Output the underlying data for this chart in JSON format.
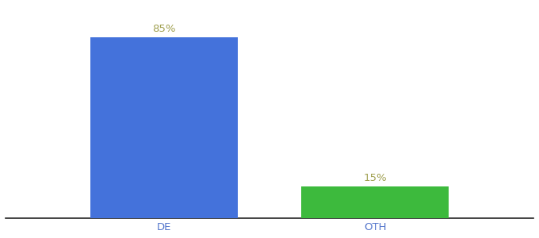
{
  "categories": [
    "DE",
    "OTH"
  ],
  "values": [
    85,
    15
  ],
  "bar_colors": [
    "#4472db",
    "#3dba3d"
  ],
  "label_texts": [
    "85%",
    "15%"
  ],
  "label_color": "#a0a050",
  "ylabel": "",
  "ylim": [
    0,
    100
  ],
  "background_color": "#ffffff",
  "tick_label_color": "#5577cc",
  "bar_width": 0.28,
  "label_fontsize": 9.5,
  "tick_fontsize": 9.5,
  "x_positions": [
    0.3,
    0.7
  ],
  "xlim": [
    0.0,
    1.0
  ]
}
